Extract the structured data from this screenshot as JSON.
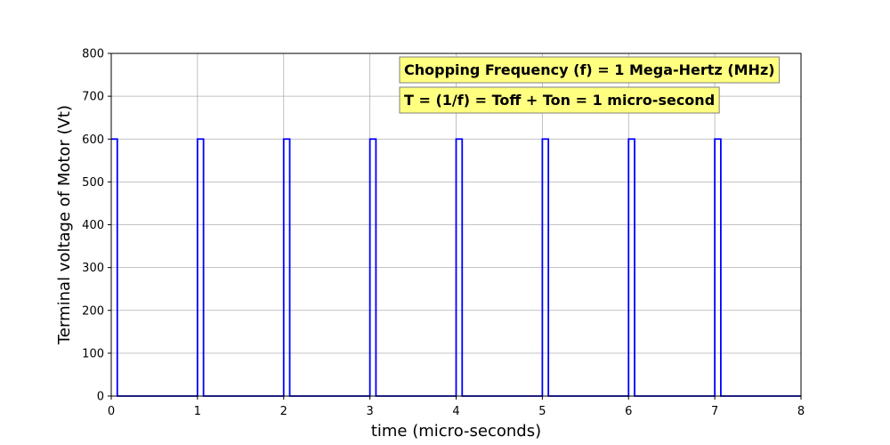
{
  "chart_data": {
    "type": "line",
    "xlabel": "time (micro-seconds)",
    "ylabel": "Terminal voltage of Motor (Vt)",
    "xlim": [
      0,
      8
    ],
    "ylim": [
      0,
      800
    ],
    "x_ticks": [
      0,
      1,
      2,
      3,
      4,
      5,
      6,
      7,
      8
    ],
    "y_ticks": [
      0,
      100,
      200,
      300,
      400,
      500,
      600,
      700,
      800
    ],
    "grid": true,
    "series": [
      {
        "color": "#0000ff",
        "x": [
          0,
          0.07,
          0.07,
          1.0,
          1.0,
          1.07,
          1.07,
          2.0,
          2.0,
          2.07,
          2.07,
          3.0,
          3.0,
          3.07,
          3.07,
          4.0,
          4.0,
          4.07,
          4.07,
          5.0,
          5.0,
          5.07,
          5.07,
          6.0,
          6.0,
          6.07,
          6.07,
          7.0,
          7.0,
          7.07,
          7.07,
          8.0
        ],
        "y": [
          600,
          600,
          0,
          0,
          600,
          600,
          0,
          0,
          600,
          600,
          0,
          0,
          600,
          600,
          0,
          0,
          600,
          600,
          0,
          0,
          600,
          600,
          0,
          0,
          600,
          600,
          0,
          0,
          600,
          600,
          0,
          0
        ]
      }
    ],
    "annotations": [
      {
        "text": "Chopping Frequency (f) = 1 Mega-Hertz (MHz)",
        "background": "#ffff80"
      },
      {
        "text": "T = (1/f) = Toff + Ton = 1 micro-second",
        "background": "#ffff80"
      }
    ]
  }
}
